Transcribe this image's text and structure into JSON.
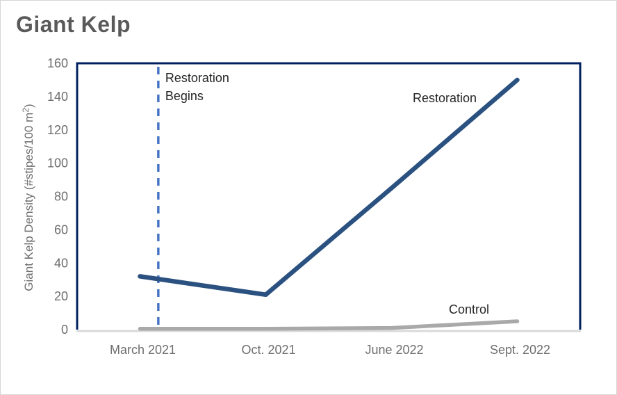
{
  "chart_data": {
    "type": "line",
    "title": "Giant Kelp",
    "categories": [
      "March 2021",
      "Oct. 2021",
      "June 2022",
      "Sept. 2022"
    ],
    "series": [
      {
        "name": "Restoration",
        "values": [
          32,
          21,
          85,
          150
        ],
        "color": "#2A5180"
      },
      {
        "name": "Control",
        "values": [
          0.5,
          0.5,
          1,
          5
        ],
        "color": "#A9A9A9"
      }
    ],
    "xlabel": "",
    "ylabel": "Giant Kelp Density (#stipes/100 m²)",
    "ylim": [
      0,
      160
    ],
    "yticks": [
      0,
      20,
      40,
      60,
      80,
      100,
      120,
      140,
      160
    ],
    "grid": false,
    "legend_position": "inline-labels-next-to-lines",
    "vline": {
      "label_lines": [
        "Restoration",
        "Begins"
      ],
      "x_frac": 0.1614,
      "style": "dashed",
      "color": "#4472C4"
    }
  },
  "colors": {
    "title_text": "#5a5a5a",
    "frame": "#002060",
    "bottom_axis": "#D9D9D9",
    "tick_text": "#6E6E6E",
    "axis_label_text": "#6E6E6E",
    "annotation_text": "#262626",
    "restoration_line": "#2A5180",
    "control_line": "#A9A9A9",
    "vline": "#4472C4",
    "card_border": "#d6d6d6",
    "background": "#ffffff"
  }
}
